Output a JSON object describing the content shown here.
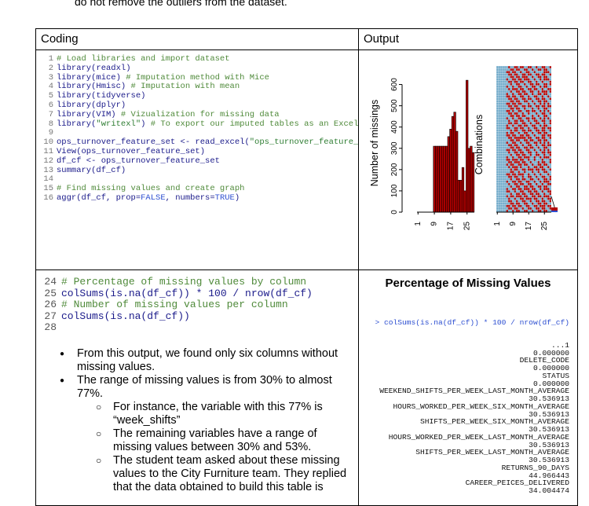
{
  "intro_text": "do not remove the outliers from the dataset.",
  "headers": {
    "coding": "Coding",
    "output": "Output"
  },
  "code1": [
    {
      "n": "1",
      "parts": [
        [
          "cm",
          "# Load libraries and import dataset"
        ]
      ]
    },
    {
      "n": "2",
      "parts": [
        [
          "fn",
          "library(readxl)"
        ]
      ]
    },
    {
      "n": "3",
      "parts": [
        [
          "fn",
          "library(mice) "
        ],
        [
          "cm",
          "# Imputation method with Mice"
        ]
      ]
    },
    {
      "n": "4",
      "parts": [
        [
          "fn",
          "library(Hmisc) "
        ],
        [
          "cm",
          "# Imputation with mean"
        ]
      ]
    },
    {
      "n": "5",
      "parts": [
        [
          "fn",
          "library(tidyverse)"
        ]
      ]
    },
    {
      "n": "6",
      "parts": [
        [
          "fn",
          "library(dplyr)"
        ]
      ]
    },
    {
      "n": "7",
      "parts": [
        [
          "fn",
          "library(VIM) "
        ],
        [
          "cm",
          "# Vizualization for missing data"
        ]
      ]
    },
    {
      "n": "8",
      "parts": [
        [
          "fn",
          "library("
        ],
        [
          "st",
          "\"writexl\""
        ],
        [
          "fn",
          ") "
        ],
        [
          "cm",
          "# To export our imputed tables as an Excel tabl"
        ]
      ]
    },
    {
      "n": "9",
      "parts": []
    },
    {
      "n": "10",
      "parts": [
        [
          "fn",
          "ops_turnover_feature_set <- read_excel("
        ],
        [
          "st",
          "\"ops_turnover_feature_set.x"
        ]
      ]
    },
    {
      "n": "11",
      "parts": [
        [
          "fn",
          "View(ops_turnover_feature_set)"
        ]
      ]
    },
    {
      "n": "12",
      "parts": [
        [
          "fn",
          "df_cf <- ops_turnover_feature_set"
        ]
      ]
    },
    {
      "n": "13",
      "parts": [
        [
          "fn",
          "summary(df_cf)"
        ]
      ]
    },
    {
      "n": "14",
      "parts": []
    },
    {
      "n": "15",
      "parts": [
        [
          "cm",
          "# Find missing values and create graph"
        ]
      ]
    },
    {
      "n": "16",
      "parts": [
        [
          "fn",
          "aggr(df_cf, prop="
        ],
        [
          "kw",
          "FALSE"
        ],
        [
          "fn",
          ", numbers="
        ],
        [
          "kw",
          "TRUE"
        ],
        [
          "fn",
          ")"
        ]
      ]
    }
  ],
  "code2": [
    {
      "n": "24",
      "parts": [
        [
          "cm",
          "# Percentage of missing values by column"
        ]
      ]
    },
    {
      "n": "25",
      "parts": [
        [
          "fn",
          "colSums(is.na(df_cf)) * 100 / nrow(df_cf)"
        ]
      ]
    },
    {
      "n": "26",
      "parts": [
        [
          "cm",
          "# Number of missing values per column"
        ]
      ]
    },
    {
      "n": "27",
      "parts": [
        [
          "fn",
          "colSums(is.na(df_cf))"
        ]
      ]
    },
    {
      "n": "28",
      "parts": []
    }
  ],
  "bullets": [
    {
      "level": 1,
      "text": "From this output, we found only six columns without missing values."
    },
    {
      "level": 1,
      "text": "The range of missing values is from 30% to almost 77%."
    },
    {
      "level": 2,
      "text": "For instance, the variable with this 77% is “week_shifts”"
    },
    {
      "level": 2,
      "text": "The remaining variables have a range of missing values between 30% and 53%."
    },
    {
      "level": 2,
      "text": "The student team asked about these missing values to the City Furniture team. They replied that the data obtained to build this table is"
    }
  ],
  "output2_title": "Percentage of Missing Values",
  "console": {
    "command": "> colSums(is.na(df_cf)) * 100 / nrow(df_cf)",
    "lines": [
      "...1",
      "0.000000",
      "DELETE_CODE",
      "0.000000",
      "STATUS",
      "0.000000",
      "WEEKEND_SHIFTS_PER_WEEK_LAST_MONTH_AVERAGE",
      "30.536913",
      "HOURS_WORKED_PER_WEEK_SIX_MONTH_AVERAGE",
      "30.536913",
      "SHIFTS_PER_WEEK_SIX_MONTH_AVERAGE",
      "30.536913",
      "HOURS_WORKED_PER_WEEK_LAST_MONTH_AVERAGE",
      "30.536913",
      "SHIFTS_PER_WEEK_LAST_MONTH_AVERAGE",
      "30.536913",
      "RETURNS_90_DAYS",
      "44.966443",
      "CAREER_PEICES_DELIVERED",
      "34.004474"
    ]
  },
  "chart_data": [
    {
      "type": "bar",
      "ylabel": "Number of missings",
      "ylim": [
        0,
        650
      ],
      "yticks": [
        "0",
        "100",
        "200",
        "300",
        "400",
        "500",
        "600"
      ],
      "xticks": [
        "1",
        "9",
        "17",
        "25"
      ],
      "bar_color": "#b00000",
      "values": [
        0,
        0,
        0,
        0,
        0,
        0,
        0,
        0,
        310,
        310,
        310,
        310,
        310,
        310,
        310,
        355,
        390,
        450,
        470,
        380,
        150,
        150,
        210,
        100,
        620,
        300,
        310,
        280
      ]
    },
    {
      "type": "heatmap",
      "ylabel": "Combinations",
      "xticks": [
        "1",
        "9",
        "17",
        "25"
      ],
      "colors": {
        "present": "#6fa9c9",
        "missing": "#b00000"
      }
    }
  ]
}
